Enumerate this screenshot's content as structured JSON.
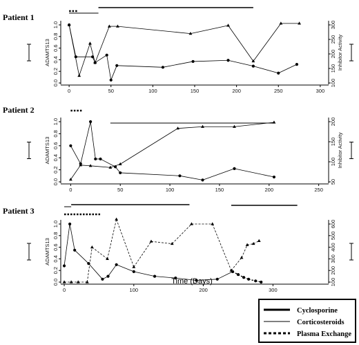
{
  "chart_data": [
    {
      "type": "line",
      "title": "Patient 1",
      "xlim": [
        -10,
        310
      ],
      "xticks": [
        0,
        50,
        100,
        150,
        200,
        250,
        300
      ],
      "ylabel_left": "ADAMTS13",
      "ylim_left": [
        0,
        1.0
      ],
      "yticks_left": [
        "0.0",
        "0.2",
        "0.4",
        "0.6",
        "0.8",
        "1.0"
      ],
      "ylabel_right": "Inhibitor Activity",
      "ylim_right": [
        100,
        300
      ],
      "yticks_right": [
        "100",
        "150",
        "200",
        "250",
        "300"
      ],
      "series": [
        {
          "axis": "left",
          "marker": "circle",
          "x": [
            0,
            8,
            28,
            31,
            45,
            50,
            57,
            112,
            148,
            190,
            220,
            250,
            272
          ],
          "y": [
            1.0,
            0.45,
            0.45,
            0.35,
            0.48,
            0.05,
            0.3,
            0.27,
            0.37,
            0.39,
            0.29,
            0.17,
            0.32
          ]
        },
        {
          "axis": "right",
          "marker": "triangle",
          "x": [
            0,
            12,
            25,
            31,
            48,
            58,
            145,
            190,
            220,
            253,
            275
          ],
          "y": [
            300,
            125,
            236,
            170,
            295,
            295,
            270,
            298,
            175,
            305,
            305
          ]
        }
      ],
      "treatments": [
        {
          "type": "Plasma Exchange",
          "start": 0,
          "end": 10
        },
        {
          "type": "Corticosteroids",
          "start": 0,
          "end": 35
        },
        {
          "type": "Cyclosporine",
          "start": 35,
          "end": 220
        }
      ]
    },
    {
      "type": "line",
      "title": "Patient 2",
      "xlim": [
        -10,
        260
      ],
      "xticks": [
        0,
        50,
        100,
        150,
        200,
        250
      ],
      "ylabel_left": "ADAMTS13",
      "ylim_left": [
        0,
        1.0
      ],
      "yticks_left": [
        "0.0",
        "0.2",
        "0.4",
        "0.6",
        "0.8",
        "1.0"
      ],
      "ylabel_right": "Inhibitor Activity",
      "ylim_right": [
        50,
        230
      ],
      "yticks_right": [
        "50",
        "100",
        "150",
        "200"
      ],
      "series": [
        {
          "axis": "left",
          "marker": "circle",
          "x": [
            0,
            10,
            20,
            25,
            30,
            45,
            50,
            110,
            133,
            165,
            205
          ],
          "y": [
            0.6,
            0.3,
            1.0,
            0.38,
            0.38,
            0.25,
            0.15,
            0.1,
            0.03,
            0.22,
            0.08
          ]
        },
        {
          "axis": "right",
          "marker": "triangle",
          "x": [
            0,
            10,
            20,
            40,
            50,
            108,
            133,
            165,
            205
          ],
          "y": [
            57,
            100,
            98,
            93,
            103,
            210,
            215,
            215,
            228
          ]
        }
      ],
      "treatments": [
        {
          "type": "Plasma Exchange",
          "start": 0,
          "end": 12
        },
        {
          "type": "Corticosteroids",
          "start": 40,
          "end": 205
        }
      ]
    },
    {
      "type": "line",
      "title": "Patient 3",
      "xlim": [
        -5,
        380
      ],
      "xticks": [
        0,
        100,
        200,
        300
      ],
      "ylabel_left": "ADAMTS13",
      "ylim_left": [
        0,
        1.0
      ],
      "yticks_left": [
        "0.0",
        "0.2",
        "0.4",
        "0.6",
        "0.8",
        "1.0"
      ],
      "ylabel_right": "",
      "ylim_right": [
        100,
        600
      ],
      "yticks_right": [
        "100",
        "200",
        "300",
        "400",
        "500",
        "600"
      ],
      "series": [
        {
          "axis": "left",
          "marker": "circle",
          "x": [
            0,
            8,
            15,
            35,
            55,
            63,
            75,
            100,
            130,
            160,
            190,
            220,
            242,
            250,
            258,
            265,
            275,
            283
          ],
          "y": [
            0.28,
            1.0,
            0.55,
            0.32,
            0.05,
            0.1,
            0.3,
            0.18,
            0.1,
            0.07,
            0.03,
            0.05,
            0.18,
            0.13,
            0.08,
            0.05,
            0.02,
            0.0
          ],
          "line": "solid-dashed-tail"
        },
        {
          "axis": "right",
          "marker": "triangle",
          "x": [
            0,
            10,
            20,
            33,
            40,
            62,
            75,
            100,
            125,
            155,
            183,
            213,
            240,
            255,
            263,
            272,
            280
          ],
          "y": [
            100,
            100,
            100,
            100,
            400,
            300,
            640,
            230,
            450,
            430,
            600,
            600,
            200,
            310,
            420,
            430,
            455
          ],
          "line": "dashed"
        }
      ],
      "treatments": [
        {
          "type": "Corticosteroids",
          "start": 0,
          "end": 10
        },
        {
          "type": "Plasma Exchange",
          "start": 0,
          "end": 52
        },
        {
          "type": "Cyclosporine",
          "start": 10,
          "end": 180
        },
        {
          "type": "Cyclosporine",
          "start": 240,
          "end": 335
        }
      ]
    }
  ],
  "xlabel": "Time (Days)",
  "legend": {
    "placement": "bottom-right",
    "items": [
      {
        "label": "Cyclosporine",
        "style": "thick"
      },
      {
        "label": "Corticosteroids",
        "style": "thin"
      },
      {
        "label": "Plasma Exchange",
        "style": "dashed"
      }
    ]
  }
}
